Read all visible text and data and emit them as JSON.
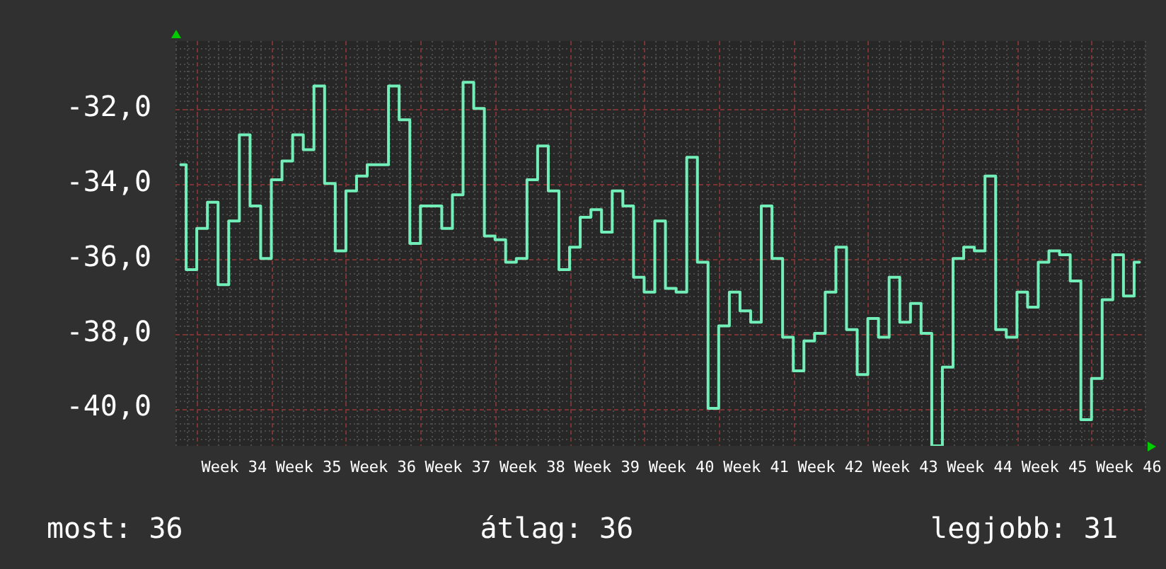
{
  "chart_data": {
    "type": "step",
    "categories": [
      null,
      null,
      null,
      null,
      null,
      "Week 34",
      null,
      null,
      null,
      null,
      null,
      null,
      "Week 35",
      null,
      null,
      null,
      null,
      null,
      null,
      "Week 36",
      null,
      null,
      null,
      null,
      null,
      null,
      "Week 37",
      null,
      null,
      null,
      null,
      null,
      null,
      "Week 38",
      null,
      null,
      null,
      null,
      null,
      null,
      "Week 39",
      null,
      null,
      null,
      null,
      null,
      null,
      "Week 40",
      null,
      null,
      null,
      null,
      null,
      null,
      "Week 41",
      null,
      null,
      null,
      null,
      null,
      null,
      "Week 42",
      null,
      null,
      null,
      null,
      null,
      null,
      "Week 43",
      null,
      null,
      null,
      null,
      null,
      null,
      "Week 44",
      null,
      null,
      null,
      null,
      null,
      null,
      "Week 45",
      null,
      null,
      null,
      null,
      null,
      null,
      "Week 46",
      null
    ],
    "values": [
      -33.5,
      -36.3,
      -35.2,
      -34.5,
      -36.7,
      -35.0,
      -32.7,
      -34.6,
      -36.0,
      -33.9,
      -33.4,
      -32.7,
      -33.1,
      -31.4,
      -34.0,
      -35.8,
      -34.2,
      -33.8,
      -33.5,
      -33.5,
      -31.4,
      -32.3,
      -35.6,
      -34.6,
      -34.6,
      -35.2,
      -34.3,
      -31.3,
      -32.0,
      -35.4,
      -35.5,
      -36.1,
      -36.0,
      -33.9,
      -33.0,
      -34.2,
      -36.3,
      -35.7,
      -34.9,
      -34.7,
      -35.3,
      -34.2,
      -34.6,
      -36.5,
      -36.9,
      -35.0,
      -36.8,
      -36.9,
      -33.3,
      -36.1,
      -40.0,
      -37.8,
      -36.9,
      -37.4,
      -37.7,
      -34.6,
      -36.0,
      -38.1,
      -39.0,
      -38.2,
      -38.0,
      -36.9,
      -35.7,
      -37.9,
      -39.1,
      -37.6,
      -38.1,
      -36.5,
      -37.7,
      -37.2,
      -38.0,
      -41.0,
      -38.9,
      -36.0,
      -35.7,
      -35.8,
      -33.8,
      -37.9,
      -38.1,
      -36.9,
      -37.3,
      -36.1,
      -35.8,
      -35.9,
      -36.6,
      -40.3,
      -39.2,
      -37.1,
      -35.9,
      -37.0,
      -36.1
    ],
    "color": "#72efb8",
    "ylim": [
      -41,
      -30.2
    ],
    "yticks": [
      {
        "value": -40.8,
        "label": null
      },
      {
        "value": -40.6,
        "label": null
      },
      {
        "value": -40.4,
        "label": null
      },
      {
        "value": -40.2,
        "label": null
      },
      {
        "value": -40,
        "label": "-40,0"
      },
      {
        "value": -39.8,
        "label": null
      },
      {
        "value": -39.6,
        "label": null
      },
      {
        "value": -39.4,
        "label": null
      },
      {
        "value": -39.2,
        "label": null
      },
      {
        "value": -39,
        "label": null
      },
      {
        "value": -38.8,
        "label": null
      },
      {
        "value": -38.6,
        "label": null
      },
      {
        "value": -38.4,
        "label": null
      },
      {
        "value": -38.2,
        "label": null
      },
      {
        "value": -38,
        "label": "-38,0"
      },
      {
        "value": -37.8,
        "label": null
      },
      {
        "value": -37.6,
        "label": null
      },
      {
        "value": -37.4,
        "label": null
      },
      {
        "value": -37.2,
        "label": null
      },
      {
        "value": -37,
        "label": null
      },
      {
        "value": -36.8,
        "label": null
      },
      {
        "value": -36.6,
        "label": null
      },
      {
        "value": -36.4,
        "label": null
      },
      {
        "value": -36.2,
        "label": null
      },
      {
        "value": -36,
        "label": "-36,0"
      },
      {
        "value": -35.8,
        "label": null
      },
      {
        "value": -35.6,
        "label": null
      },
      {
        "value": -35.4,
        "label": null
      },
      {
        "value": -35.2,
        "label": null
      },
      {
        "value": -35,
        "label": null
      },
      {
        "value": -34.8,
        "label": null
      },
      {
        "value": -34.6,
        "label": null
      },
      {
        "value": -34.4,
        "label": null
      },
      {
        "value": -34.2,
        "label": null
      },
      {
        "value": -34,
        "label": "-34,0"
      },
      {
        "value": -33.8,
        "label": null
      },
      {
        "value": -33.6,
        "label": null
      },
      {
        "value": -33.4,
        "label": null
      },
      {
        "value": -33.2,
        "label": null
      },
      {
        "value": -33,
        "label": null
      },
      {
        "value": -32.8,
        "label": null
      },
      {
        "value": -32.6,
        "label": null
      },
      {
        "value": -32.4,
        "label": null
      },
      {
        "value": -32.2,
        "label": null
      },
      {
        "value": -32,
        "label": "-32,0"
      },
      {
        "value": -31.8,
        "label": null
      },
      {
        "value": -31.6,
        "label": null
      },
      {
        "value": -31.4,
        "label": null
      },
      {
        "value": -31.2,
        "label": null
      },
      {
        "value": -31,
        "label": null
      },
      {
        "value": -30.8,
        "label": null
      },
      {
        "value": -30.6,
        "label": null
      },
      {
        "value": -30.4,
        "label": null
      }
    ],
    "grid": true,
    "annotations": [
      "most: 36",
      "átlag: 36",
      "legjobb: 31"
    ]
  }
}
